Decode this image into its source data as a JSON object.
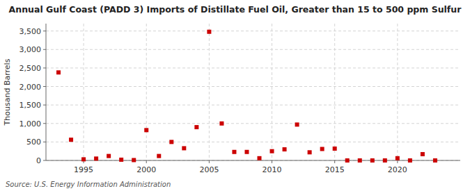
{
  "chart_data": {
    "type": "scatter",
    "title": "Annual Gulf Coast (PADD 3) Imports of Distillate Fuel Oil, Greater than 15 to 500 ppm Sulfur",
    "ylabel": "Thousand Barrels",
    "annotations": [
      "Source: U.S. Energy Information Administration"
    ],
    "x": [
      1993,
      1994,
      1995,
      1996,
      1997,
      1998,
      1999,
      2000,
      2001,
      2002,
      2003,
      2004,
      2005,
      2006,
      2007,
      2008,
      2009,
      2010,
      2011,
      2012,
      2013,
      2014,
      2015,
      2016,
      2017,
      2018,
      2019,
      2020,
      2021,
      2022,
      2023
    ],
    "values": [
      2380,
      560,
      30,
      50,
      120,
      20,
      10,
      820,
      120,
      500,
      330,
      900,
      3480,
      1000,
      230,
      230,
      60,
      250,
      300,
      970,
      220,
      310,
      320,
      0,
      0,
      0,
      0,
      60,
      0,
      170,
      0
    ],
    "color": "#cc0000",
    "marker": "square",
    "xlim": [
      1992.0,
      2025.0
    ],
    "xticks": [
      1995,
      2000,
      2005,
      2010,
      2015,
      2020
    ],
    "ylim": [
      0,
      3700
    ],
    "yticks": [
      0,
      500,
      {
        "value": 1000,
        "label": "1,000"
      },
      {
        "value": 1500,
        "label": "1,500"
      },
      {
        "value": 2000,
        "label": "2,000"
      },
      {
        "value": 2500,
        "label": "2,500"
      },
      {
        "value": 3000,
        "label": "3,000"
      },
      {
        "value": 3500,
        "label": "3,500"
      }
    ],
    "grid": true
  }
}
